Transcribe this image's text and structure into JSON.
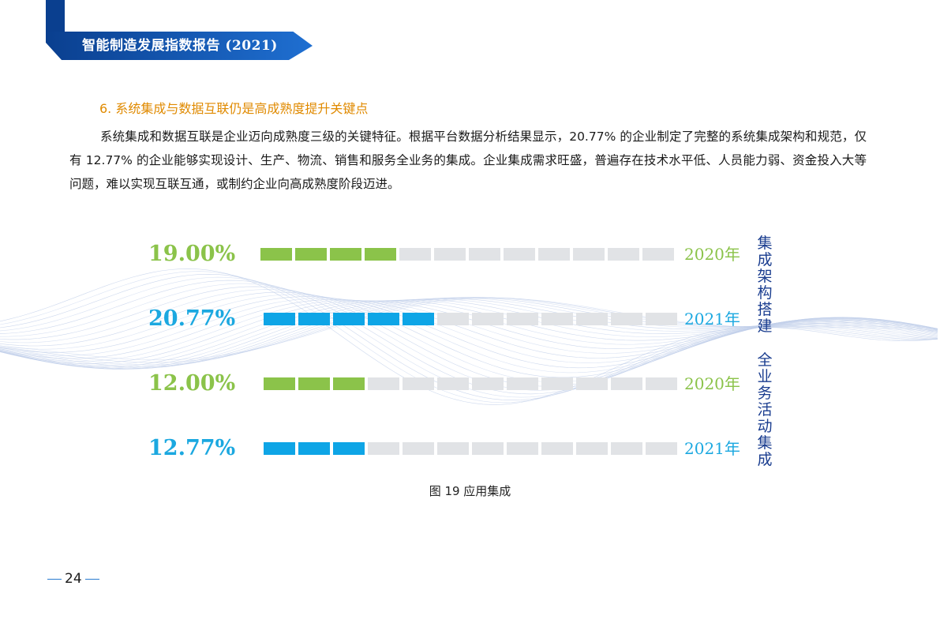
{
  "header": {
    "title": "智能制造发展指数报告 (2021)"
  },
  "section": {
    "title": "6. 系统集成与数据互联仍是高成熟度提升关键点",
    "paragraph": "系统集成和数据互联是企业迈向成熟度三级的关键特征。根据平台数据分析结果显示，20.77% 的企业制定了完整的系统集成架构和规范，仅有 12.77% 的企业能够实现设计、生产、物流、销售和服务全业务的集成。企业集成需求旺盛，普遍存在技术水平低、人员能力弱、资金投入大等问题，难以实现互联互通，或制约企业向高成熟度阶段迈进。"
  },
  "chart_data": {
    "type": "bar",
    "title": "",
    "groups": [
      {
        "name": "集成架构搭建",
        "rows": [
          {
            "label": "19.00%",
            "value": 19.0,
            "year": "2020年",
            "color": "#8bc34a"
          },
          {
            "label": "20.77%",
            "value": 20.77,
            "year": "2021年",
            "color": "#0ea5e6"
          }
        ]
      },
      {
        "name": "全业务活动集成",
        "rows": [
          {
            "label": "12.00%",
            "value": 12.0,
            "year": "2020年",
            "color": "#8bc34a"
          },
          {
            "label": "12.77%",
            "value": 12.77,
            "year": "2021年",
            "color": "#0ea5e6"
          }
        ]
      }
    ],
    "segments_total": 12,
    "segments_filled": [
      4,
      5,
      3,
      3
    ]
  },
  "figure": {
    "caption": "图 19  应用集成"
  },
  "footer": {
    "page": "24"
  }
}
